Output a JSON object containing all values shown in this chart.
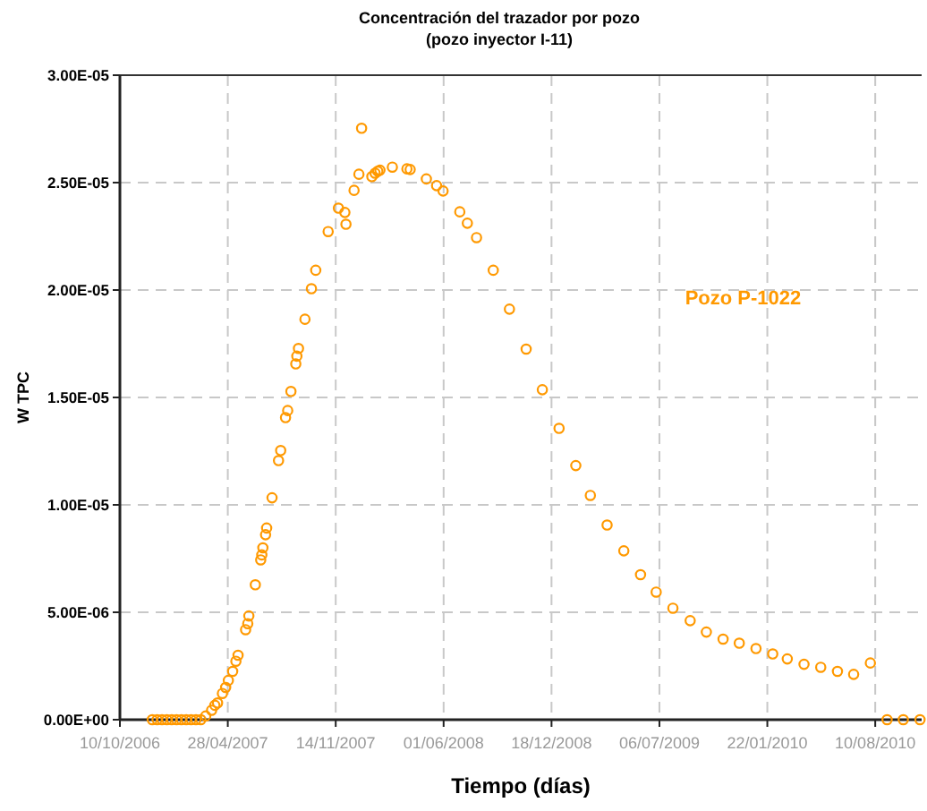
{
  "chart_data": {
    "type": "scatter",
    "title": "Concentración del trazador por pozo",
    "subtitle": "(pozo inyector I-11)",
    "xlabel": "Tiempo (días)",
    "ylabel": "W TPC",
    "xlim": [
      "2006-10-10",
      "2010-11-04"
    ],
    "xticks": [
      {
        "value": "2006-10-10",
        "label": "10/10/2006"
      },
      {
        "value": "2007-04-28",
        "label": "28/04/2007"
      },
      {
        "value": "2007-11-14",
        "label": "14/11/2007"
      },
      {
        "value": "2008-06-01",
        "label": "01/06/2008"
      },
      {
        "value": "2008-12-18",
        "label": "18/12/2008"
      },
      {
        "value": "2009-07-06",
        "label": "06/07/2009"
      },
      {
        "value": "2010-01-22",
        "label": "22/01/2010"
      },
      {
        "value": "2010-08-10",
        "label": "10/08/2010"
      }
    ],
    "ylim": [
      0,
      3e-05
    ],
    "yticks": [
      {
        "value": 0,
        "label": "0.00E+00"
      },
      {
        "value": 5e-06,
        "label": "5.00E-06"
      },
      {
        "value": 1e-05,
        "label": "1.00E-05"
      },
      {
        "value": 1.5e-05,
        "label": "1.50E-05"
      },
      {
        "value": 2e-05,
        "label": "2.00E-05"
      },
      {
        "value": 2.5e-05,
        "label": "2.50E-05"
      },
      {
        "value": 3e-05,
        "label": "3.00E-05"
      }
    ],
    "grid": true,
    "marker": "circle",
    "series": [
      {
        "name": "Pozo P-1022",
        "color": "#ff9900",
        "x": [
          "2006-12-09",
          "2006-12-18",
          "2006-12-27",
          "2007-01-05",
          "2007-01-14",
          "2007-01-23",
          "2007-02-01",
          "2007-02-10",
          "2007-02-19",
          "2007-02-28",
          "2007-03-09",
          "2007-03-18",
          "2007-03-29",
          "2007-04-04",
          "2007-04-09",
          "2007-04-18",
          "2007-04-24",
          "2007-04-29",
          "2007-05-07",
          "2007-05-13",
          "2007-05-17",
          "2007-05-31",
          "2007-06-04",
          "2007-06-06",
          "2007-06-18",
          "2007-06-28",
          "2007-06-30",
          "2007-07-02",
          "2007-07-07",
          "2007-07-09",
          "2007-07-19",
          "2007-07-31",
          "2007-08-04",
          "2007-08-13",
          "2007-08-17",
          "2007-08-23",
          "2007-09-01",
          "2007-09-03",
          "2007-09-06",
          "2007-09-18",
          "2007-09-30",
          "2007-10-08",
          "2007-10-31",
          "2007-11-19",
          "2007-12-01",
          "2007-12-03",
          "2007-12-18",
          "2007-12-27",
          "2008-01-01",
          "2008-01-20",
          "2008-01-26",
          "2008-01-31",
          "2008-02-04",
          "2008-02-27",
          "2008-03-25",
          "2008-03-31",
          "2008-04-30",
          "2008-05-19",
          "2008-05-31",
          "2008-07-01",
          "2008-07-15",
          "2008-08-01",
          "2008-09-01",
          "2008-10-01",
          "2008-11-01",
          "2008-12-01",
          "2009-01-01",
          "2009-02-01",
          "2009-02-28",
          "2009-03-31",
          "2009-05-01",
          "2009-06-01",
          "2009-06-30",
          "2009-07-31",
          "2009-09-01",
          "2009-10-01",
          "2009-11-01",
          "2009-12-01",
          "2010-01-01",
          "2010-02-01",
          "2010-02-28",
          "2010-03-31",
          "2010-05-01",
          "2010-06-01",
          "2010-07-01",
          "2010-08-01",
          "2010-09-01",
          "2010-10-01",
          "2010-11-01"
        ],
        "values": [
          0,
          0,
          0,
          0,
          0,
          0,
          0,
          0,
          0,
          0,
          0,
          1.7e-07,
          4.4e-07,
          6.7e-07,
          7.8e-07,
          1.22e-06,
          1.5e-06,
          1.83e-06,
          2.25e-06,
          2.72e-06,
          3e-06,
          4.19e-06,
          4.47e-06,
          4.83e-06,
          6.28e-06,
          7.44e-06,
          7.67e-06,
          8e-06,
          8.61e-06,
          8.92e-06,
          1.033e-05,
          1.206e-05,
          1.253e-05,
          1.406e-05,
          1.439e-05,
          1.528e-05,
          1.656e-05,
          1.692e-05,
          1.728e-05,
          1.864e-05,
          2.006e-05,
          2.092e-05,
          2.272e-05,
          2.381e-05,
          2.361e-05,
          2.306e-05,
          2.464e-05,
          2.539e-05,
          2.753e-05,
          2.528e-05,
          2.544e-05,
          2.553e-05,
          2.558e-05,
          2.572e-05,
          2.564e-05,
          2.561e-05,
          2.517e-05,
          2.486e-05,
          2.461e-05,
          2.364e-05,
          2.311e-05,
          2.244e-05,
          2.092e-05,
          1.911e-05,
          1.725e-05,
          1.536e-05,
          1.356e-05,
          1.183e-05,
          1.044e-05,
          9.06e-06,
          7.86e-06,
          6.75e-06,
          5.94e-06,
          5.19e-06,
          4.61e-06,
          4.08e-06,
          3.75e-06,
          3.56e-06,
          3.31e-06,
          3.06e-06,
          2.83e-06,
          2.58e-06,
          2.44e-06,
          2.25e-06,
          2.11e-06,
          2.64e-06,
          0,
          0,
          0
        ]
      }
    ]
  }
}
